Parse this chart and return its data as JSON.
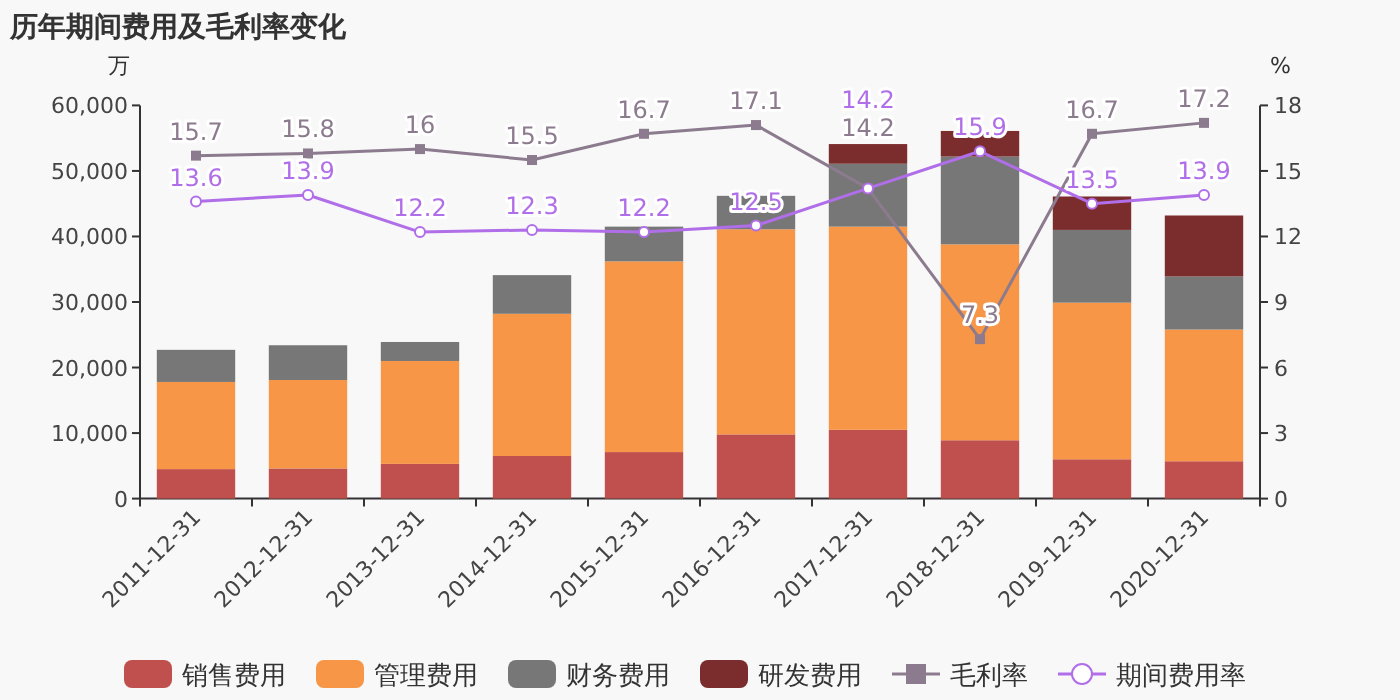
{
  "chart_data": {
    "type": "bar",
    "stacked": true,
    "title": "历年期间费用及毛利率变化",
    "ylabel": "万",
    "y2label": "%",
    "categories": [
      "2011-12-31",
      "2012-12-31",
      "2013-12-31",
      "2014-12-31",
      "2015-12-31",
      "2016-12-31",
      "2017-12-31",
      "2018-12-31",
      "2019-12-31",
      "2020-12-31"
    ],
    "ylim": [
      0,
      60000
    ],
    "yticks": [
      0,
      {
        "value": 10000,
        "label": "10,000"
      },
      {
        "value": 20000,
        "label": "20,000"
      },
      {
        "value": 30000,
        "label": "30,000"
      },
      {
        "value": 40000,
        "label": "40,000"
      },
      {
        "value": 50000,
        "label": "50,000"
      },
      {
        "value": 60000,
        "label": "60,000"
      }
    ],
    "y2lim": [
      0,
      18
    ],
    "y2ticks": [
      0,
      3,
      6,
      9,
      12,
      15,
      18
    ],
    "grid": false,
    "legend": "bottom",
    "series": [
      {
        "name": "销售费用",
        "color": "#c0504d",
        "values": [
          4500,
          4600,
          5300,
          6500,
          7100,
          9800,
          10500,
          8900,
          6000,
          5700
        ]
      },
      {
        "name": "管理费用",
        "color": "#f79646",
        "values": [
          13300,
          13500,
          15700,
          21700,
          29100,
          31300,
          31000,
          29900,
          23900,
          20100
        ]
      },
      {
        "name": "财务费用",
        "color": "#777777",
        "values": [
          4900,
          5300,
          2900,
          5900,
          5300,
          5100,
          9600,
          13400,
          11100,
          8100
        ]
      },
      {
        "name": "研发费用",
        "color": "#7b2c2c",
        "values": [
          0,
          0,
          0,
          0,
          0,
          0,
          3000,
          3900,
          5100,
          9300
        ]
      },
      {
        "name": "毛利率",
        "type": "line",
        "axis": "y2",
        "marker": "square",
        "data_labels": true,
        "color": "#8c7b8e",
        "values": [
          15.7,
          15.8,
          16,
          15.5,
          16.7,
          17.1,
          14.2,
          7.3,
          16.7,
          17.2
        ]
      },
      {
        "name": "期间费用率",
        "type": "line",
        "axis": "y2",
        "marker": "circle",
        "data_labels": true,
        "color": "#b06ee8",
        "values": [
          13.6,
          13.9,
          12.2,
          12.3,
          12.2,
          12.5,
          14.2,
          15.9,
          13.5,
          13.9
        ]
      }
    ]
  }
}
